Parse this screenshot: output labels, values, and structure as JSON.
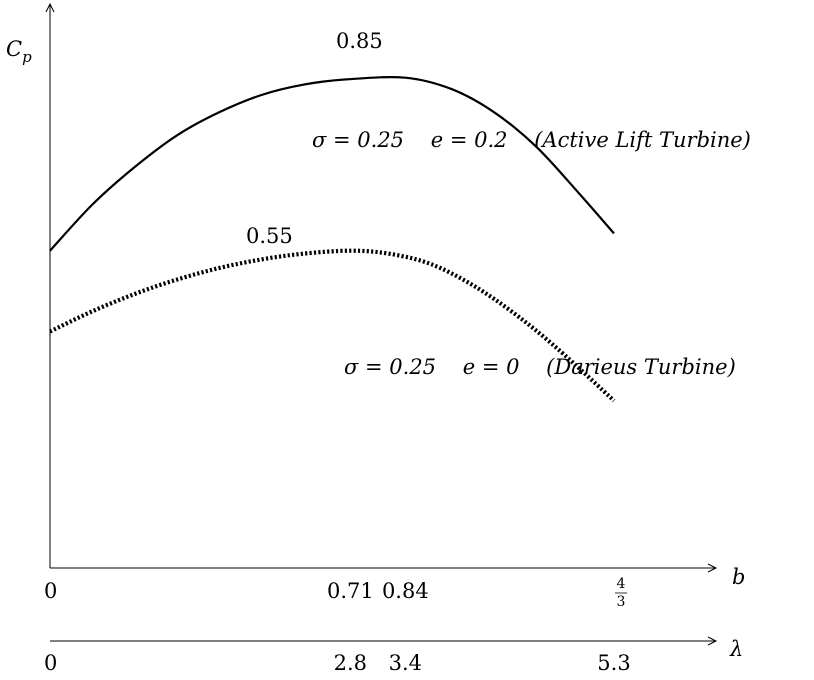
{
  "chart_data": {
    "type": "line",
    "ylabel": {
      "base": "C",
      "sub": "p"
    },
    "xlabel": "b",
    "x2label": "λ",
    "x_ticks": [
      {
        "value": 0,
        "label": "0"
      },
      {
        "value": 0.71,
        "label": "0.71"
      },
      {
        "value": 0.84,
        "label": "0.84"
      },
      {
        "value": 1.3333,
        "label_num": "4",
        "label_den": "3"
      }
    ],
    "x2_ticks": [
      {
        "value": 0,
        "label": "0"
      },
      {
        "value": 2.8,
        "label": "2.8"
      },
      {
        "value": 3.4,
        "label": "3.4"
      },
      {
        "value": 5.3,
        "label": "5.3"
      }
    ],
    "ylim": [
      0,
      0.95
    ],
    "series": [
      {
        "style": "solid",
        "peak_label": "0.85",
        "annotation": "σ = 0.25    e = 0.2    (Active Lift Turbine)",
        "x": [
          0,
          0.1,
          0.2,
          0.3,
          0.4,
          0.5,
          0.6,
          0.7,
          0.84,
          0.95,
          1.05,
          1.15,
          1.25,
          1.3333
        ],
        "y": [
          0.55,
          0.63,
          0.695,
          0.75,
          0.79,
          0.82,
          0.838,
          0.847,
          0.85,
          0.83,
          0.79,
          0.73,
          0.65,
          0.58
        ]
      },
      {
        "style": "dotted",
        "peak_label": "0.55",
        "annotation": "σ = 0.25    e = 0    (Darieus Turbine)",
        "x": [
          0,
          0.1,
          0.2,
          0.3,
          0.4,
          0.5,
          0.6,
          0.71,
          0.8,
          0.9,
          1.0,
          1.1,
          1.2,
          1.3333
        ],
        "y": [
          0.41,
          0.445,
          0.475,
          0.5,
          0.52,
          0.535,
          0.545,
          0.55,
          0.545,
          0.527,
          0.49,
          0.44,
          0.38,
          0.29
        ]
      }
    ]
  }
}
